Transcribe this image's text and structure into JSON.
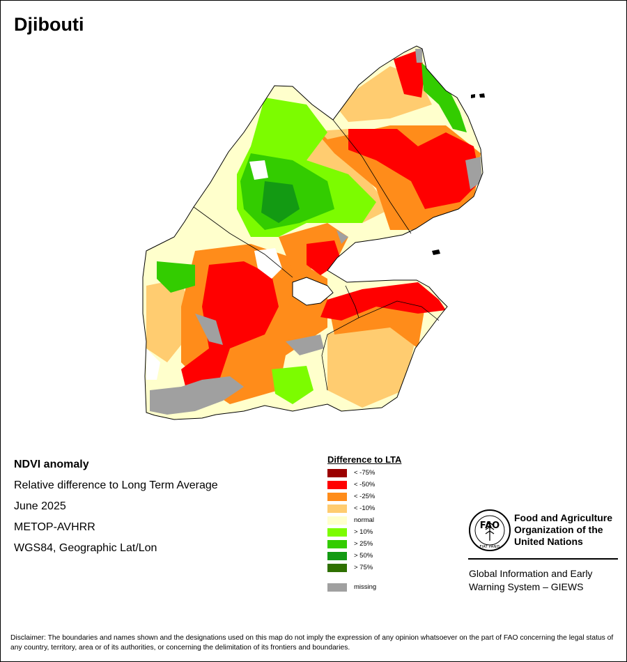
{
  "title": "Djibouti",
  "map_info": {
    "product": "NDVI anomaly",
    "description": "Relative difference to Long Term Average",
    "period": "June 2025",
    "sensor": "METOP-AVHRR",
    "projection": "WGS84, Geographic Lat/Lon"
  },
  "legend": {
    "title": "Difference to LTA",
    "items": [
      {
        "label": "< -75%",
        "color": "#9b0000"
      },
      {
        "label": "< -50%",
        "color": "#ff0000"
      },
      {
        "label": "< -25%",
        "color": "#ff8c1a"
      },
      {
        "label": "< -10%",
        "color": "#ffcc70"
      },
      {
        "label": "normal",
        "color": "#ffffcc"
      },
      {
        "label": "> 10%",
        "color": "#7cfc00"
      },
      {
        "label": "> 25%",
        "color": "#33cc00"
      },
      {
        "label": "> 50%",
        "color": "#139a13"
      },
      {
        "label": "> 75%",
        "color": "#2e7000"
      },
      {
        "label": "missing",
        "color": "#a0a0a0"
      }
    ]
  },
  "logo": {
    "org_name": [
      "Food and Agriculture",
      "Organization of the",
      "United Nations"
    ],
    "logo_text": "FAO",
    "motto": "FIAT PANIS"
  },
  "giews": [
    "Global Information and Early",
    "Warning System – GIEWS"
  ],
  "disclaimer": "Disclaimer: The boundaries and names shown and the designations used on this map do not imply the expression of any opinion whatsoever on the part of FAO concerning the legal status of any country, territory, area or of its authorities, or concerning the delimitation of its frontiers and boundaries."
}
